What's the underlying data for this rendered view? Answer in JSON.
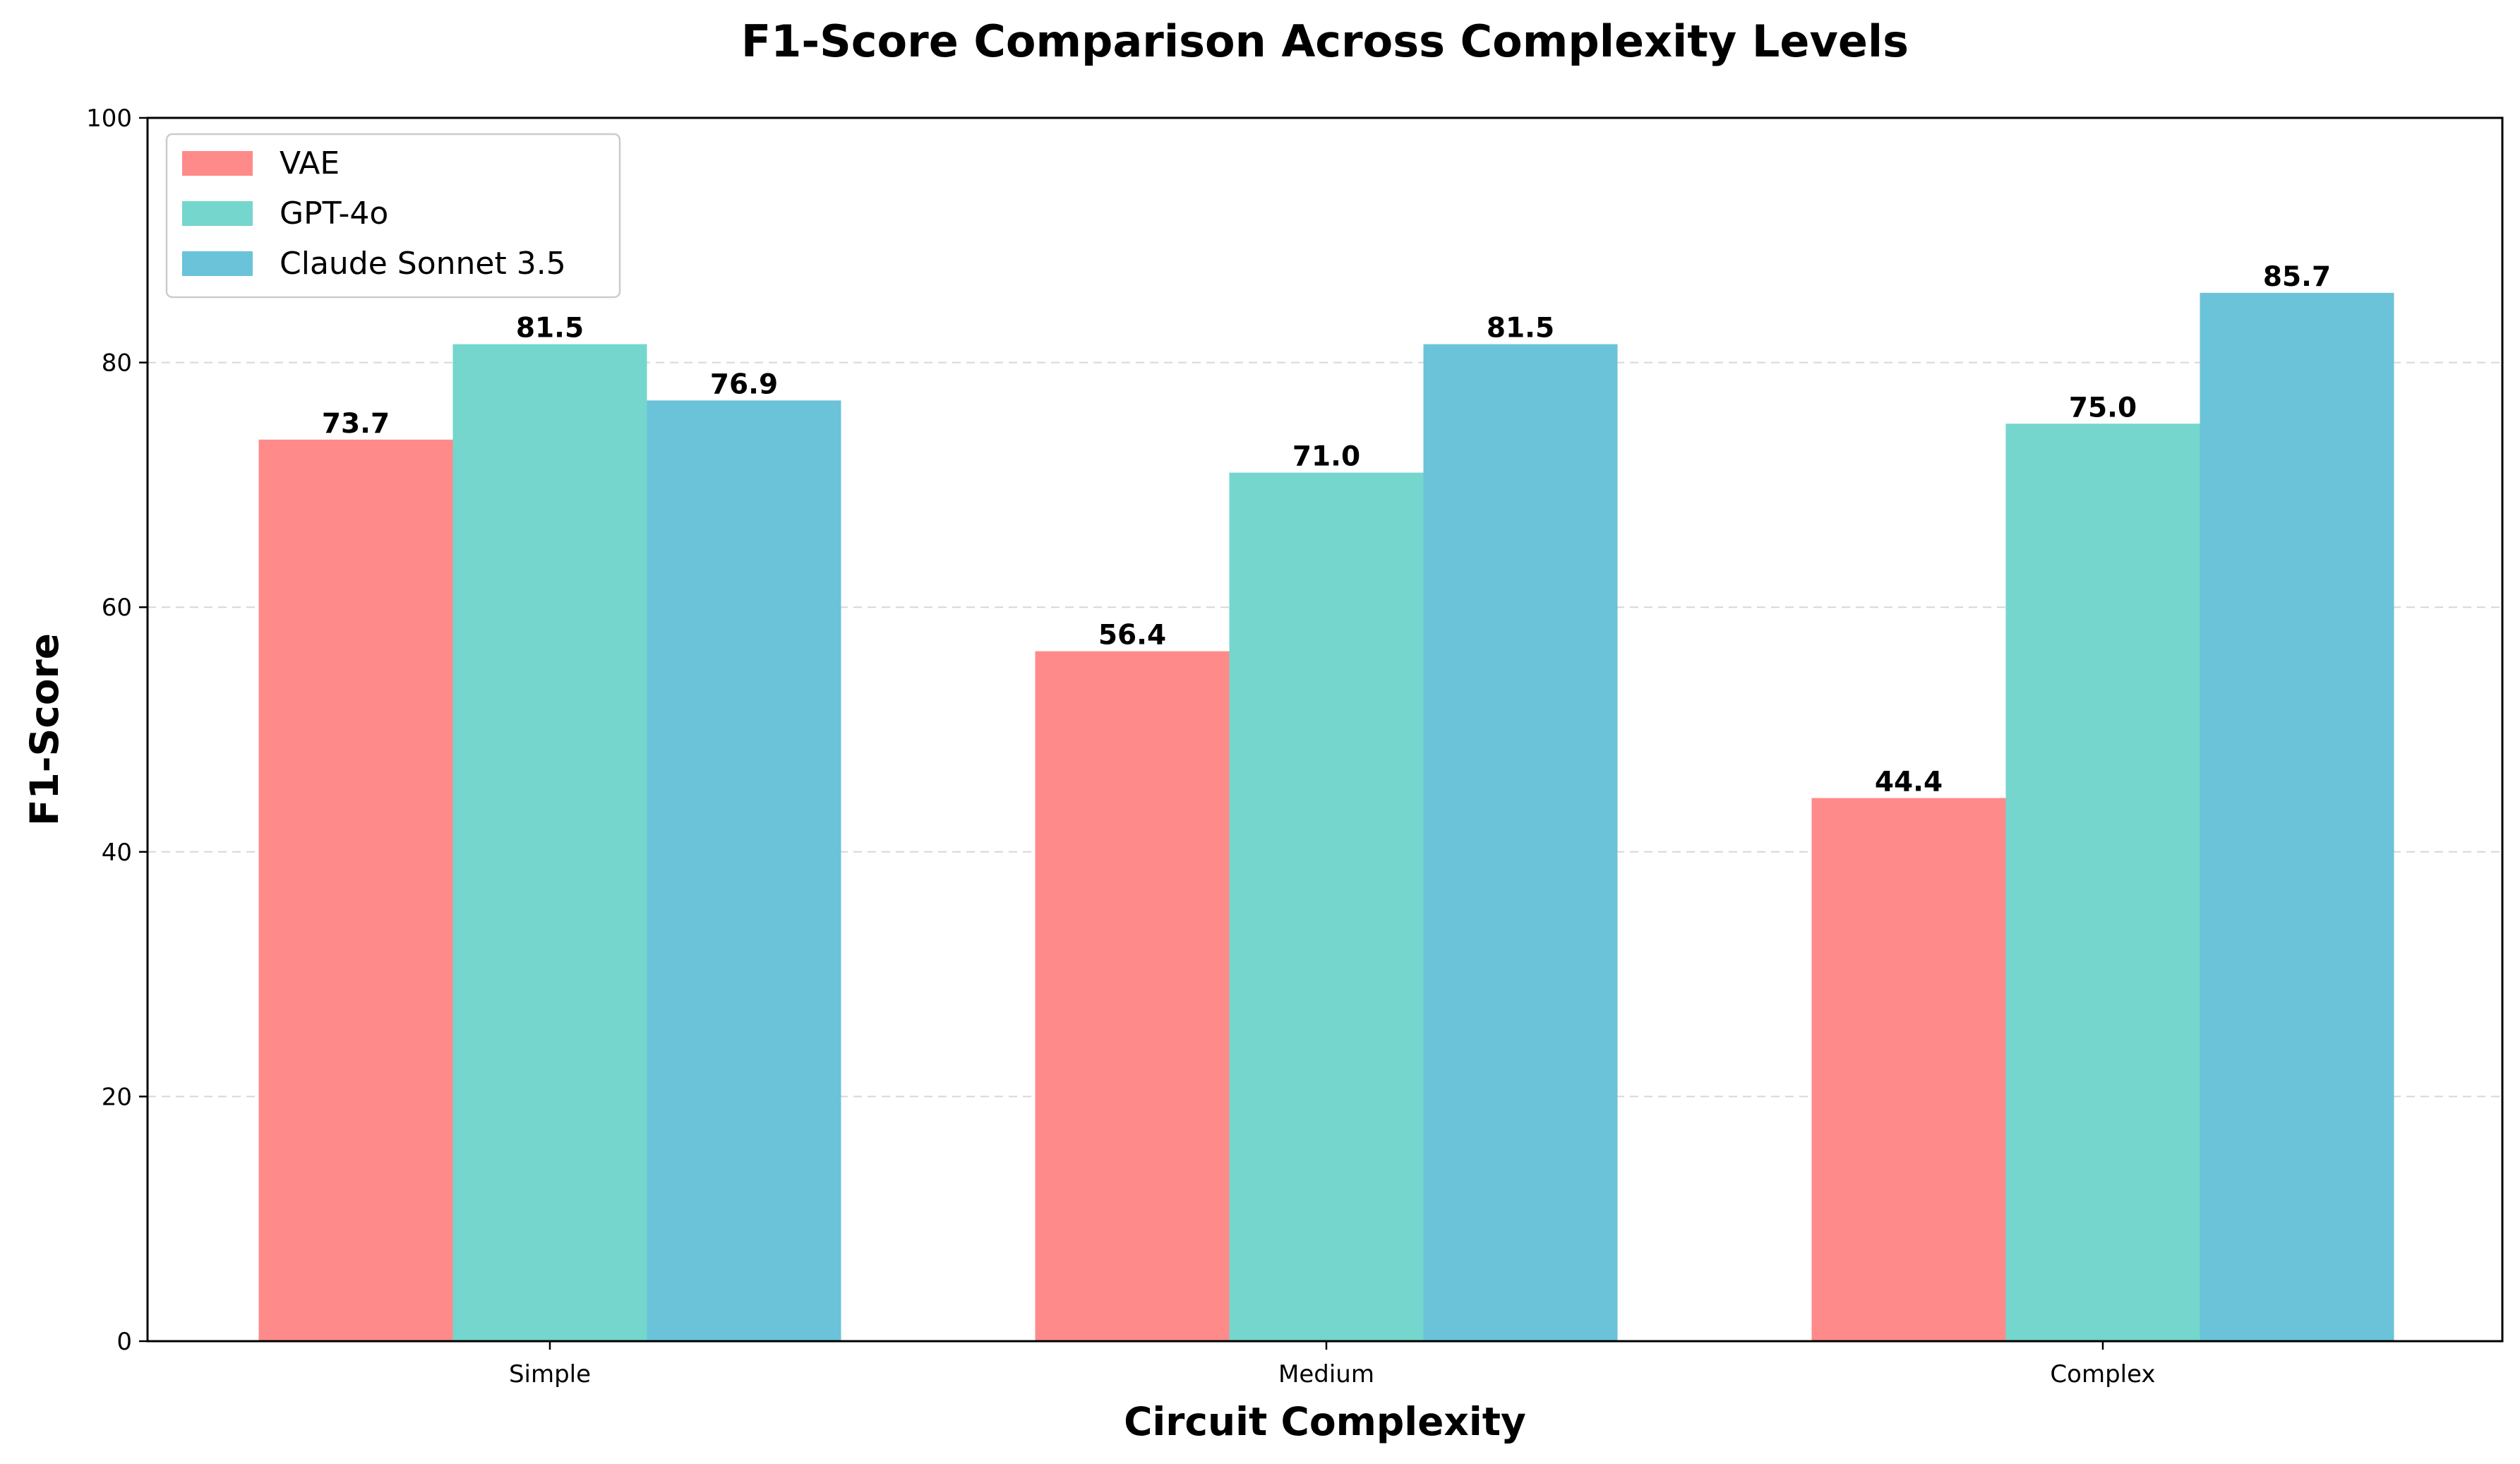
{
  "chart_data": {
    "type": "bar",
    "title": "F1-Score Comparison Across Complexity Levels",
    "xlabel": "Circuit Complexity",
    "ylabel": "F1-Score",
    "categories": [
      "Simple",
      "Medium",
      "Complex"
    ],
    "ylim": [
      0,
      100
    ],
    "yticks": [
      0,
      20,
      40,
      60,
      80,
      100
    ],
    "grid": "horizontal-dashed",
    "legend_position": "top-left",
    "series": [
      {
        "name": "VAE",
        "color": "#FF8A8A",
        "values": [
          73.7,
          56.4,
          44.4
        ],
        "labels": [
          "73.7",
          "56.4",
          "44.4"
        ]
      },
      {
        "name": "GPT-4o",
        "color": "#74D6CD",
        "values": [
          81.5,
          71.0,
          75.0
        ],
        "labels": [
          "81.5",
          "71.0",
          "75.0"
        ]
      },
      {
        "name": "Claude Sonnet 3.5",
        "color": "#6AC3D9",
        "values": [
          76.9,
          81.5,
          85.7
        ],
        "labels": [
          "76.9",
          "81.5",
          "85.7"
        ]
      }
    ]
  }
}
